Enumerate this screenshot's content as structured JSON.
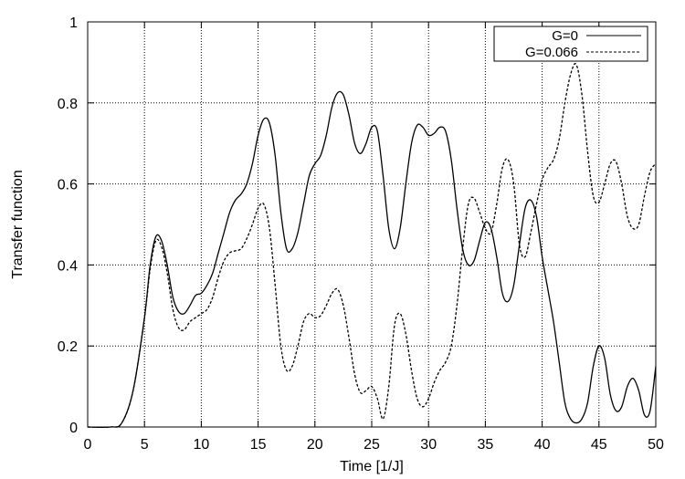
{
  "chart_data": {
    "type": "line",
    "title": "",
    "xlabel": "Time [1/J]",
    "ylabel": "Transfer function",
    "xlim": [
      0,
      50
    ],
    "ylim": [
      0,
      1
    ],
    "x_ticks": [
      0,
      5,
      10,
      15,
      20,
      25,
      30,
      35,
      40,
      45,
      50
    ],
    "x_tick_labels": [
      "0",
      "5",
      "10",
      "15",
      "20",
      "25",
      "30",
      "35",
      "40",
      "45",
      "50"
    ],
    "y_ticks": [
      0,
      0.2,
      0.4,
      0.6,
      0.8,
      1
    ],
    "y_tick_labels": [
      "0",
      "0.2",
      "0.4",
      "0.6",
      "0.8",
      "1"
    ],
    "grid": true,
    "legend_position": "top-right",
    "series": [
      {
        "name": "G=0",
        "line_style": "solid",
        "color": "#000000",
        "points": [
          [
            2,
            0
          ],
          [
            3,
            0.01
          ],
          [
            4,
            0.09
          ],
          [
            5,
            0.27
          ],
          [
            5.5,
            0.4
          ],
          [
            6,
            0.47
          ],
          [
            6.5,
            0.46
          ],
          [
            7,
            0.4
          ],
          [
            7.5,
            0.32
          ],
          [
            8,
            0.285
          ],
          [
            8.5,
            0.28
          ],
          [
            9,
            0.3
          ],
          [
            9.5,
            0.325
          ],
          [
            10,
            0.33
          ],
          [
            10.5,
            0.35
          ],
          [
            11,
            0.38
          ],
          [
            11.5,
            0.43
          ],
          [
            12,
            0.48
          ],
          [
            12.5,
            0.53
          ],
          [
            13,
            0.56
          ],
          [
            13.5,
            0.575
          ],
          [
            14,
            0.6
          ],
          [
            14.5,
            0.65
          ],
          [
            15,
            0.72
          ],
          [
            15.5,
            0.76
          ],
          [
            16,
            0.75
          ],
          [
            16.5,
            0.67
          ],
          [
            17,
            0.53
          ],
          [
            17.5,
            0.44
          ],
          [
            18,
            0.44
          ],
          [
            18.5,
            0.48
          ],
          [
            19,
            0.55
          ],
          [
            19.5,
            0.62
          ],
          [
            20,
            0.65
          ],
          [
            20.5,
            0.67
          ],
          [
            21,
            0.72
          ],
          [
            21.5,
            0.79
          ],
          [
            22,
            0.825
          ],
          [
            22.5,
            0.82
          ],
          [
            23,
            0.77
          ],
          [
            23.5,
            0.7
          ],
          [
            24,
            0.675
          ],
          [
            24.5,
            0.7
          ],
          [
            25,
            0.74
          ],
          [
            25.5,
            0.73
          ],
          [
            26,
            0.62
          ],
          [
            26.5,
            0.49
          ],
          [
            27,
            0.44
          ],
          [
            27.5,
            0.49
          ],
          [
            28,
            0.6
          ],
          [
            28.5,
            0.7
          ],
          [
            29,
            0.745
          ],
          [
            29.5,
            0.74
          ],
          [
            30,
            0.72
          ],
          [
            30.5,
            0.725
          ],
          [
            31,
            0.74
          ],
          [
            31.5,
            0.73
          ],
          [
            32,
            0.66
          ],
          [
            32.5,
            0.54
          ],
          [
            33,
            0.44
          ],
          [
            33.5,
            0.4
          ],
          [
            34,
            0.41
          ],
          [
            34.5,
            0.46
          ],
          [
            35,
            0.505
          ],
          [
            35.5,
            0.49
          ],
          [
            36,
            0.42
          ],
          [
            36.5,
            0.33
          ],
          [
            37,
            0.31
          ],
          [
            37.5,
            0.35
          ],
          [
            38,
            0.45
          ],
          [
            38.5,
            0.54
          ],
          [
            39,
            0.56
          ],
          [
            39.5,
            0.52
          ],
          [
            40,
            0.42
          ],
          [
            40.5,
            0.34
          ],
          [
            41,
            0.26
          ],
          [
            41.5,
            0.16
          ],
          [
            42,
            0.06
          ],
          [
            42.5,
            0.02
          ],
          [
            43,
            0.01
          ],
          [
            43.5,
            0.02
          ],
          [
            44,
            0.06
          ],
          [
            44.5,
            0.15
          ],
          [
            45,
            0.2
          ],
          [
            45.5,
            0.17
          ],
          [
            46,
            0.08
          ],
          [
            46.5,
            0.04
          ],
          [
            47,
            0.05
          ],
          [
            47.5,
            0.1
          ],
          [
            48,
            0.12
          ],
          [
            48.5,
            0.09
          ],
          [
            49,
            0.03
          ],
          [
            49.5,
            0.04
          ],
          [
            50,
            0.15
          ]
        ]
      },
      {
        "name": "G=0.066",
        "line_style": "dashed",
        "color": "#000000",
        "points": [
          [
            2,
            0
          ],
          [
            3,
            0.01
          ],
          [
            4,
            0.09
          ],
          [
            5,
            0.27
          ],
          [
            5.5,
            0.39
          ],
          [
            6,
            0.46
          ],
          [
            6.5,
            0.445
          ],
          [
            7,
            0.38
          ],
          [
            7.5,
            0.29
          ],
          [
            8,
            0.245
          ],
          [
            8.5,
            0.24
          ],
          [
            9,
            0.26
          ],
          [
            9.5,
            0.27
          ],
          [
            10,
            0.28
          ],
          [
            10.5,
            0.29
          ],
          [
            11,
            0.32
          ],
          [
            11.5,
            0.37
          ],
          [
            12,
            0.41
          ],
          [
            12.5,
            0.43
          ],
          [
            13,
            0.435
          ],
          [
            13.5,
            0.44
          ],
          [
            14,
            0.465
          ],
          [
            14.5,
            0.5
          ],
          [
            15,
            0.54
          ],
          [
            15.5,
            0.55
          ],
          [
            16,
            0.49
          ],
          [
            16.5,
            0.35
          ],
          [
            17,
            0.2
          ],
          [
            17.5,
            0.14
          ],
          [
            18,
            0.15
          ],
          [
            18.5,
            0.2
          ],
          [
            19,
            0.26
          ],
          [
            19.5,
            0.28
          ],
          [
            20,
            0.27
          ],
          [
            20.5,
            0.275
          ],
          [
            21,
            0.3
          ],
          [
            21.5,
            0.33
          ],
          [
            22,
            0.34
          ],
          [
            22.5,
            0.3
          ],
          [
            23,
            0.22
          ],
          [
            23.5,
            0.13
          ],
          [
            24,
            0.085
          ],
          [
            24.5,
            0.09
          ],
          [
            25,
            0.1
          ],
          [
            25.5,
            0.07
          ],
          [
            26,
            0.02
          ],
          [
            26.5,
            0.1
          ],
          [
            27,
            0.25
          ],
          [
            27.5,
            0.28
          ],
          [
            28,
            0.23
          ],
          [
            28.5,
            0.14
          ],
          [
            29,
            0.07
          ],
          [
            29.5,
            0.05
          ],
          [
            30,
            0.07
          ],
          [
            30.5,
            0.11
          ],
          [
            31,
            0.14
          ],
          [
            31.5,
            0.16
          ],
          [
            32,
            0.2
          ],
          [
            32.5,
            0.3
          ],
          [
            33,
            0.44
          ],
          [
            33.5,
            0.55
          ],
          [
            34,
            0.565
          ],
          [
            34.5,
            0.53
          ],
          [
            35,
            0.49
          ],
          [
            35.5,
            0.48
          ],
          [
            36,
            0.55
          ],
          [
            36.5,
            0.64
          ],
          [
            37,
            0.66
          ],
          [
            37.5,
            0.6
          ],
          [
            38,
            0.45
          ],
          [
            38.5,
            0.42
          ],
          [
            39,
            0.48
          ],
          [
            39.5,
            0.55
          ],
          [
            40,
            0.61
          ],
          [
            40.5,
            0.64
          ],
          [
            41,
            0.66
          ],
          [
            41.5,
            0.71
          ],
          [
            42,
            0.8
          ],
          [
            42.5,
            0.87
          ],
          [
            43,
            0.895
          ],
          [
            43.5,
            0.82
          ],
          [
            44,
            0.68
          ],
          [
            44.5,
            0.57
          ],
          [
            45,
            0.555
          ],
          [
            45.5,
            0.6
          ],
          [
            46,
            0.65
          ],
          [
            46.5,
            0.655
          ],
          [
            47,
            0.6
          ],
          [
            47.5,
            0.52
          ],
          [
            48,
            0.49
          ],
          [
            48.5,
            0.5
          ],
          [
            49,
            0.57
          ],
          [
            49.5,
            0.63
          ],
          [
            50,
            0.65
          ]
        ]
      }
    ]
  }
}
